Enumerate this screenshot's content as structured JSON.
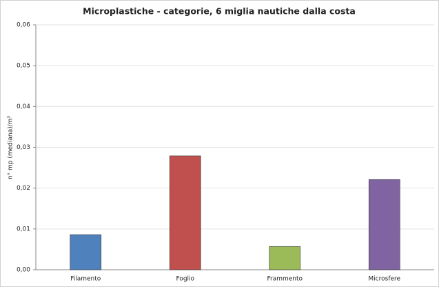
{
  "chart_data": {
    "type": "bar",
    "title": "Microplastiche - categorie, 6 miglia nautiche dalla costa",
    "y_label": "n° mp (mediana)/m³",
    "categories": [
      "Filamento",
      "Foglio",
      "Frammento",
      "Microsfere"
    ],
    "values": [
      0.0086,
      0.0279,
      0.0057,
      0.0221
    ],
    "colors": [
      "#4f81bd",
      "#c0504d",
      "#9bbb59",
      "#8064a2"
    ],
    "ylim": [
      0,
      0.06
    ],
    "yticks": [
      {
        "value": 0,
        "label": "0,00"
      },
      {
        "value": 0.01,
        "label": "0,01"
      },
      {
        "value": 0.02,
        "label": "0,02"
      },
      {
        "value": 0.03,
        "label": "0,03"
      },
      {
        "value": 0.04,
        "label": "0,04"
      },
      {
        "value": 0.05,
        "label": "0,05"
      },
      {
        "value": 0.06,
        "label": "0,06"
      }
    ],
    "grid": true
  }
}
